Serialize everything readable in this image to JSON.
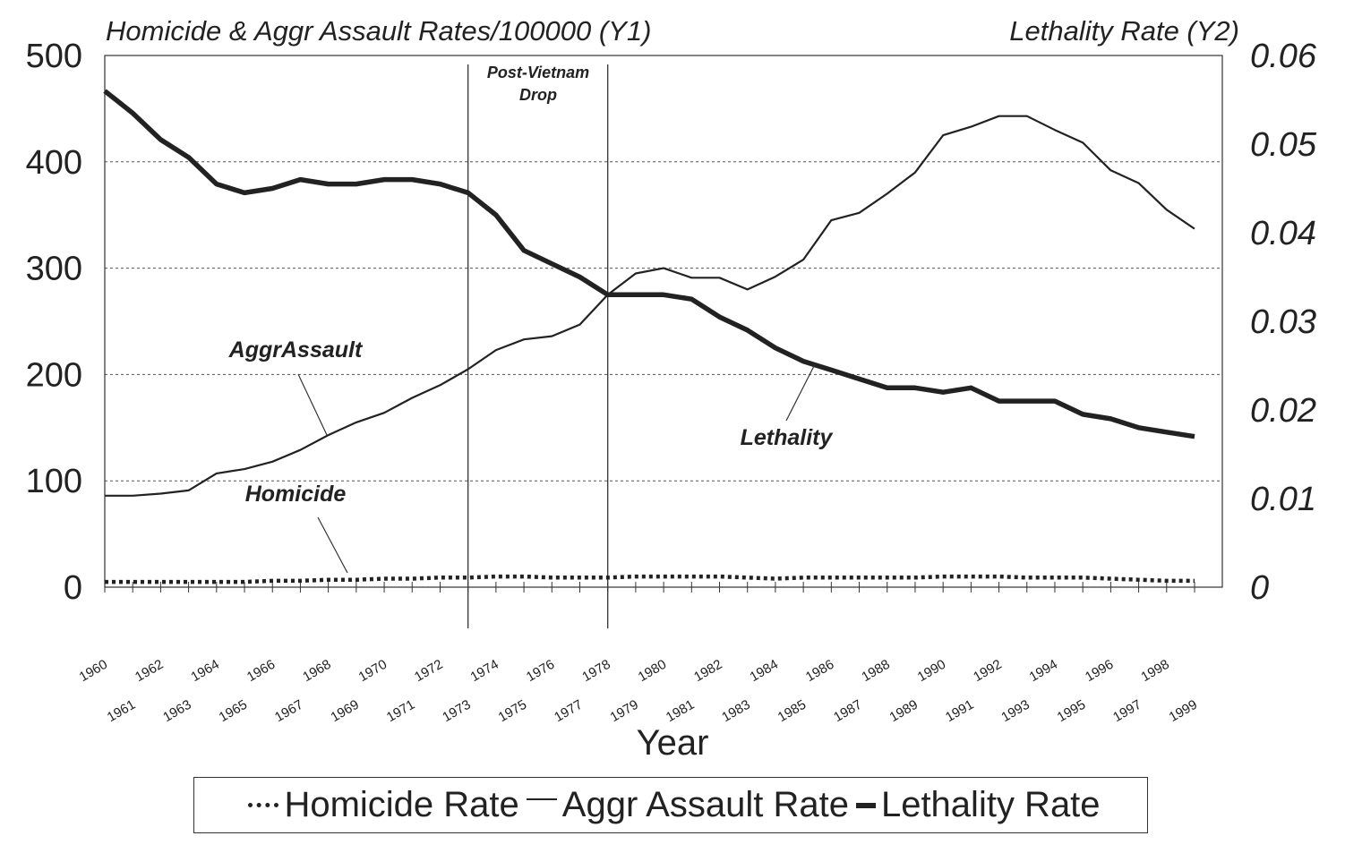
{
  "chart_data": {
    "type": "line",
    "title_left": "Homicide & Aggr Assault Rates/100000 (Y1)",
    "title_right": "Lethality Rate (Y2)",
    "xlabel": "Year",
    "y1_ticks": [
      "0",
      "100",
      "200",
      "300",
      "400",
      "500"
    ],
    "y2_ticks": [
      "0",
      "0.01",
      "0.02",
      "0.03",
      "0.04",
      "0.05",
      "0.06"
    ],
    "y1lim": [
      0,
      500
    ],
    "y2lim": [
      0,
      0.06
    ],
    "x": [
      1960,
      1961,
      1962,
      1963,
      1964,
      1965,
      1966,
      1967,
      1968,
      1969,
      1970,
      1971,
      1972,
      1973,
      1974,
      1975,
      1976,
      1977,
      1978,
      1979,
      1980,
      1981,
      1982,
      1983,
      1984,
      1985,
      1986,
      1987,
      1988,
      1989,
      1990,
      1991,
      1992,
      1993,
      1994,
      1995,
      1996,
      1997,
      1998,
      1999
    ],
    "grid": true,
    "series": [
      {
        "name": "Homicide Rate",
        "axis": "y1",
        "style": "dotted",
        "values": [
          5,
          5,
          5,
          5,
          5,
          5,
          6,
          6,
          7,
          7,
          8,
          8,
          9,
          9,
          10,
          10,
          9,
          9,
          9,
          10,
          10,
          10,
          10,
          9,
          8,
          9,
          9,
          9,
          9,
          9,
          10,
          10,
          10,
          9,
          9,
          9,
          8,
          7,
          6,
          6
        ]
      },
      {
        "name": "Aggr Assault Rate",
        "axis": "y1",
        "style": "thin",
        "values": [
          86,
          86,
          88,
          91,
          107,
          111,
          118,
          129,
          143,
          155,
          164,
          178,
          190,
          205,
          223,
          233,
          236,
          247,
          275,
          295,
          300,
          291,
          291,
          280,
          292,
          308,
          345,
          352,
          370,
          390,
          425,
          433,
          443,
          443,
          430,
          418,
          392,
          380,
          355,
          337
        ]
      },
      {
        "name": "Lethality Rate",
        "axis": "y2",
        "style": "thick",
        "values": [
          0.056,
          0.0535,
          0.0505,
          0.0485,
          0.0455,
          0.0445,
          0.045,
          0.046,
          0.0455,
          0.0455,
          0.046,
          0.046,
          0.0455,
          0.0445,
          0.042,
          0.038,
          0.0365,
          0.035,
          0.033,
          0.033,
          0.033,
          0.0325,
          0.0305,
          0.029,
          0.027,
          0.0255,
          0.0245,
          0.0235,
          0.0225,
          0.0225,
          0.022,
          0.0225,
          0.021,
          0.021,
          0.021,
          0.0195,
          0.019,
          0.018,
          0.0175,
          0.017
        ]
      }
    ],
    "annotations": [
      {
        "text": "AggrAssault",
        "target_series": "Aggr Assault Rate"
      },
      {
        "text": "Homicide",
        "target_series": "Homicide Rate"
      },
      {
        "text": "Lethality",
        "target_series": "Lethality Rate"
      },
      {
        "text_lines": [
          "Post-Vietnam",
          "Drop"
        ],
        "x_range": [
          1973,
          1978
        ]
      }
    ],
    "legend": {
      "position": "bottom-center",
      "entries": [
        "Homicide Rate",
        "Aggr Assault Rate",
        "Lethality Rate"
      ]
    }
  }
}
